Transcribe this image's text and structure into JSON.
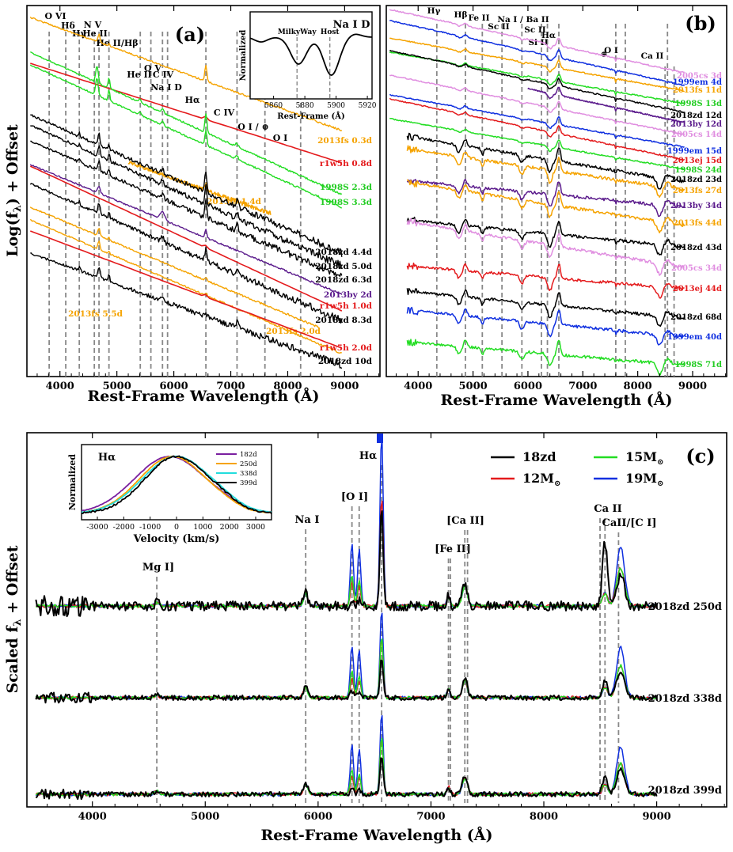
{
  "panels": {
    "a": {
      "tag": "(a)",
      "ylabel_main": "Log(f",
      "ylabel_sub": "λ",
      "ylabel_end": ") + Offset",
      "xlabel": "Rest-Frame Wavelength (Å)",
      "xticks": [
        "4000",
        "5000",
        "6000",
        "7000",
        "8000",
        "9000"
      ],
      "lines": [
        {
          "label": "O VI",
          "wl": 3811
        },
        {
          "label": "Hδ",
          "wl": 4102
        },
        {
          "label": "Hγ",
          "wl": 4340
        },
        {
          "label": "N V",
          "wl": 4604
        },
        {
          "label": "He II",
          "wl": 4686
        },
        {
          "label": "He II/Hβ",
          "wl": 4861
        },
        {
          "label": "He II",
          "wl": 5411
        },
        {
          "label": "O V",
          "wl": 5597
        },
        {
          "label": "C IV",
          "wl": 5801
        },
        {
          "label": "Na I D",
          "wl": 5890
        },
        {
          "label": "Hα",
          "wl": 6563
        },
        {
          "label": "C IV",
          "wl": 7110
        },
        {
          "label": "O I / ⊕",
          "wl": 7600
        },
        {
          "label": "O I",
          "wl": 8227
        }
      ],
      "spectra": [
        {
          "name": "2013fs 0.3d",
          "color": "#f5a300"
        },
        {
          "name": "r1w5h 0.8d",
          "color": "#e41a1c"
        },
        {
          "name": "1998S 2.3d",
          "color": "#22dd22"
        },
        {
          "name": "1998S 3.3d",
          "color": "#22dd22"
        },
        {
          "name": "2013fs 1.4d",
          "color": "#f5a300"
        },
        {
          "name": "2018zd 4.4d",
          "color": "#000000"
        },
        {
          "name": "2018zd 5.0d",
          "color": "#000000"
        },
        {
          "name": "2018zd 6.3d",
          "color": "#000000"
        },
        {
          "name": "2013by 2d",
          "color": "#5b1b8c"
        },
        {
          "name": "r1w5h 1.0d",
          "color": "#e41a1c"
        },
        {
          "name": "2018zd 8.3d",
          "color": "#000000"
        },
        {
          "name": "2013fs 2.0d",
          "color": "#f5a300"
        },
        {
          "name": "2013fs 5.5d",
          "color": "#f5a300"
        },
        {
          "name": "r1w5h 2.0d",
          "color": "#e41a1c"
        },
        {
          "name": "2018zd 10d",
          "color": "#000000"
        }
      ],
      "inset": {
        "title": "Na I D",
        "ylabel": "Normalized",
        "xlabel": "Rest-Frame (Å)",
        "xticks": [
          "5860",
          "5880",
          "5900",
          "5920"
        ],
        "marks": [
          {
            "label": "MilkyWay",
            "wl": 5875
          },
          {
            "label": "Host",
            "wl": 5896
          }
        ]
      }
    },
    "b": {
      "tag": "(b)",
      "xlabel": "Rest-Frame Wavelength (Å)",
      "xticks": [
        "4000",
        "5000",
        "6000",
        "7000",
        "8000",
        "9000"
      ],
      "lines": [
        {
          "label": "Hγ",
          "wl": 4340
        },
        {
          "label": "Hβ",
          "wl": 4861
        },
        {
          "label": "Fe II",
          "wl": 5169
        },
        {
          "label": "Sc II",
          "wl": 5527
        },
        {
          "label": "Na I / Ba II",
          "wl": 5890
        },
        {
          "label": "Sc II",
          "wl": 6246
        },
        {
          "label": "Si II",
          "wl": 6355
        },
        {
          "label": "Hα",
          "wl": 6563
        },
        {
          "label": "⊕",
          "wl": 7600
        },
        {
          "label": "O I",
          "wl": 7774
        },
        {
          "label": "Ca II",
          "wl": 8542
        }
      ],
      "spectra": [
        {
          "name": "2005cs 3d",
          "color": "#e08ee0"
        },
        {
          "name": "1999em 4d",
          "color": "#1030e0"
        },
        {
          "name": "2013fs 11d",
          "color": "#f5a300"
        },
        {
          "name": "1998S 13d",
          "color": "#22dd22"
        },
        {
          "name": "2018zd 12d",
          "color": "#000000"
        },
        {
          "name": "2013by 12d",
          "color": "#5b1b8c"
        },
        {
          "name": "2005cs 14d",
          "color": "#e08ee0"
        },
        {
          "name": "1999em 15d",
          "color": "#1030e0"
        },
        {
          "name": "2013ej 15d",
          "color": "#e41a1c"
        },
        {
          "name": "1998S 24d",
          "color": "#22dd22"
        },
        {
          "name": "2018zd 23d",
          "color": "#000000"
        },
        {
          "name": "2013fs 27d",
          "color": "#f5a300"
        },
        {
          "name": "2013by 34d",
          "color": "#5b1b8c"
        },
        {
          "name": "2013fs 44d",
          "color": "#f5a300"
        },
        {
          "name": "2018zd 43d",
          "color": "#000000"
        },
        {
          "name": "2005cs 34d",
          "color": "#e08ee0"
        },
        {
          "name": "2013ej 44d",
          "color": "#e41a1c"
        },
        {
          "name": "2018zd 68d",
          "color": "#000000"
        },
        {
          "name": "1999em 40d",
          "color": "#1030e0"
        },
        {
          "name": "1998S 71d",
          "color": "#22dd22"
        }
      ]
    },
    "c": {
      "tag": "(c)",
      "ylabel_main": "Scaled f",
      "ylabel_sub": "λ",
      "ylabel_end": " + Offset",
      "xlabel": "Rest-Frame Wavelength (Å)",
      "xticks": [
        "4000",
        "5000",
        "6000",
        "7000",
        "8000",
        "9000"
      ],
      "lines": [
        {
          "label": "Mg I]",
          "wl": 4571
        },
        {
          "label": "Na I",
          "wl": 5890
        },
        {
          "label": "[O I]",
          "wl": 6300
        },
        {
          "label": "Hα",
          "wl": 6563
        },
        {
          "label": "[Fe II]",
          "wl": 7155
        },
        {
          "label": "[Ca II]",
          "wl": 7300
        },
        {
          "label": "Ca II",
          "wl": 8542
        },
        {
          "label": "CaII/[C I]",
          "wl": 8662
        }
      ],
      "legend": [
        {
          "name": "18zd",
          "color": "#000000"
        },
        {
          "name": "15M",
          "sub": "⊙",
          "color": "#22dd22"
        },
        {
          "name": "12M",
          "sub": "⊙",
          "color": "#e41a1c"
        },
        {
          "name": "19M",
          "sub": "⊙",
          "color": "#1030e0"
        }
      ],
      "epochs": [
        "2018zd 250d",
        "2018zd 338d",
        "2018zd 399d"
      ],
      "inset": {
        "title": "Hα",
        "ylabel": "Normalized",
        "xlabel": "Velocity (km/s)",
        "xticks": [
          "-3000",
          "-2000",
          "-1000",
          "0",
          "1000",
          "2000",
          "3000"
        ],
        "series": [
          {
            "name": "182d",
            "color": "#7a1fa0"
          },
          {
            "name": "250d",
            "color": "#f5a300"
          },
          {
            "name": "338d",
            "color": "#22dddd"
          },
          {
            "name": "399d",
            "color": "#000000"
          }
        ]
      }
    }
  }
}
